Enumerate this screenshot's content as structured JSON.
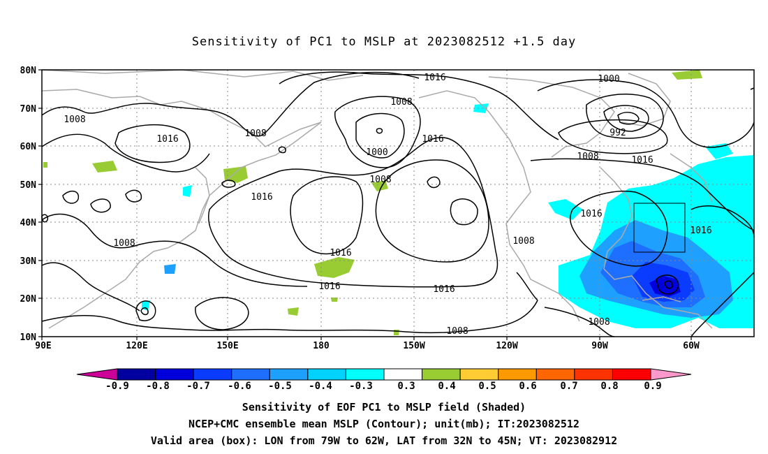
{
  "title": "Sensitivity of PC1 to MSLP at 2023082512 +1.5 day",
  "map": {
    "lat_ticks": [
      "80N",
      "70N",
      "60N",
      "50N",
      "40N",
      "30N",
      "20N",
      "10N"
    ],
    "lon_ticks": [
      "90E",
      "120E",
      "150E",
      "180",
      "150W",
      "120W",
      "90W",
      "60W"
    ],
    "contour_labels": [
      "1016",
      "1008",
      "1000",
      "992",
      "1016",
      "1008",
      "1016",
      "1008",
      "1016",
      "1008",
      "1000",
      "1008",
      "1016",
      "1016",
      "1016",
      "1008",
      "1016",
      "1016",
      "1016",
      "1008",
      "1008",
      "1008"
    ],
    "valid_box": {
      "lon_from": "79W",
      "lon_to": "62W",
      "lat_from": "32N",
      "lat_to": "45N"
    }
  },
  "colorbar": {
    "labels": [
      "-0.9",
      "-0.8",
      "-0.7",
      "-0.6",
      "-0.5",
      "-0.4",
      "-0.3",
      "0.3",
      "0.4",
      "0.5",
      "0.6",
      "0.7",
      "0.8",
      "0.9"
    ],
    "colors": [
      "#0000a0",
      "#0000dc",
      "#0a3cff",
      "#1e6eff",
      "#1ea0ff",
      "#00d2ff",
      "#00ffff",
      "#ffffff",
      "#99cc33",
      "#ffcc33",
      "#ff9900",
      "#ff6600",
      "#ff3300",
      "#ff0000"
    ],
    "low_end_color": "#cc0099",
    "high_end_color": "#ff99cc"
  },
  "captions": [
    "Sensitivity of EOF PC1 to MSLP field (Shaded)",
    "NCEP+CMC ensemble mean MSLP (Contour); unit(mb); IT:2023082512",
    "Valid area (box): LON from 79W to 62W, LAT from 32N to 45N; VT: 2023082912"
  ]
}
